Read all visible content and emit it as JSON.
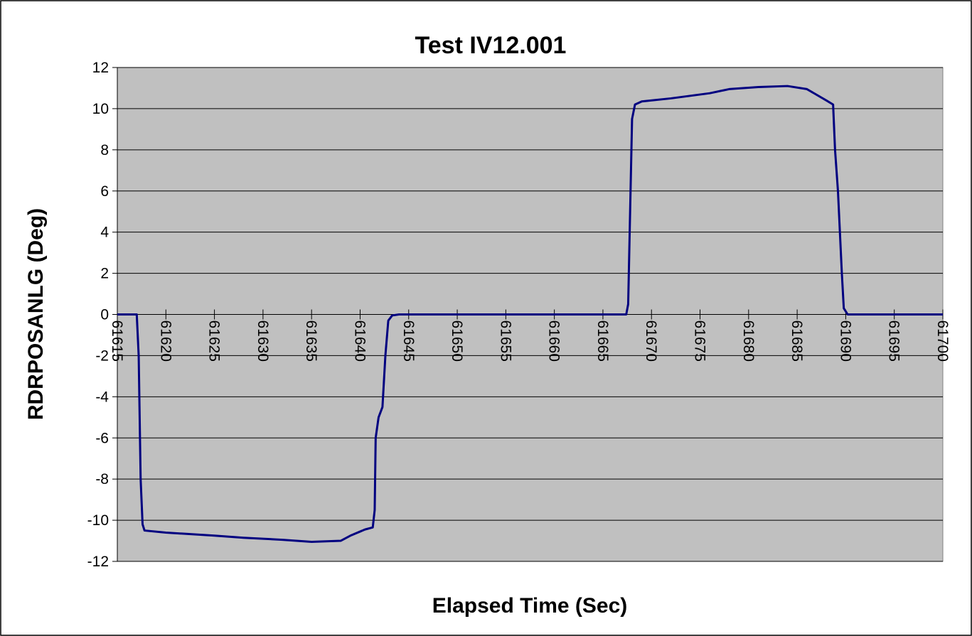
{
  "chart_data": {
    "type": "line",
    "title": "Test IV12.001",
    "xlabel": "Elapsed Time (Sec)",
    "ylabel": "RDRPOSANLG (Deg)",
    "x": [
      61615,
      61616,
      61617,
      61617.2,
      61617.4,
      61617.6,
      61617.8,
      61620,
      61625,
      61628,
      61632,
      61635,
      61638,
      61639,
      61640.5,
      61641.3,
      61641.5,
      61641.6,
      61641.9,
      61642.3,
      61642.6,
      61642.9,
      61643.3,
      61644,
      61645,
      61667.4,
      61667.6,
      61667.8,
      61668,
      61668.3,
      61669,
      61672,
      61676,
      61678,
      61681,
      61684,
      61686,
      61688,
      61688.7,
      61688.9,
      61689.2,
      61689.4,
      61689.6,
      61689.8,
      61690.2,
      61700
    ],
    "series": [
      {
        "name": "RDRPOSANLG",
        "color": "#000080",
        "values": [
          0,
          0,
          0,
          -2,
          -8,
          -10.2,
          -10.5,
          -10.6,
          -10.75,
          -10.85,
          -10.95,
          -11.05,
          -11.0,
          -10.75,
          -10.45,
          -10.35,
          -9.5,
          -6,
          -5,
          -4.5,
          -2,
          -0.3,
          -0.05,
          0,
          0,
          0,
          0.5,
          5,
          9.5,
          10.2,
          10.35,
          10.5,
          10.75,
          10.95,
          11.05,
          11.1,
          10.95,
          10.4,
          10.2,
          8,
          6,
          4,
          2,
          0.3,
          0,
          0
        ]
      }
    ],
    "xlim": [
      61615,
      61700
    ],
    "xticks": [
      61615,
      61620,
      61625,
      61630,
      61635,
      61640,
      61645,
      61650,
      61655,
      61660,
      61665,
      61670,
      61675,
      61680,
      61685,
      61690,
      61695,
      61700
    ],
    "ylim": [
      -12,
      12
    ],
    "yticks": [
      -12,
      -10,
      -8,
      -6,
      -4,
      -2,
      0,
      2,
      4,
      6,
      8,
      10,
      12
    ],
    "grid": true
  }
}
